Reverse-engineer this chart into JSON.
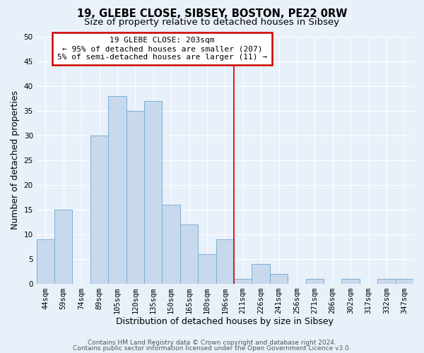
{
  "title1": "19, GLEBE CLOSE, SIBSEY, BOSTON, PE22 0RW",
  "title2": "Size of property relative to detached houses in Sibsey",
  "xlabel": "Distribution of detached houses by size in Sibsey",
  "ylabel": "Number of detached properties",
  "bar_labels": [
    "44sqm",
    "59sqm",
    "74sqm",
    "89sqm",
    "105sqm",
    "120sqm",
    "135sqm",
    "150sqm",
    "165sqm",
    "180sqm",
    "196sqm",
    "211sqm",
    "226sqm",
    "241sqm",
    "256sqm",
    "271sqm",
    "286sqm",
    "302sqm",
    "317sqm",
    "332sqm",
    "347sqm"
  ],
  "bar_values": [
    9,
    15,
    0,
    30,
    38,
    35,
    37,
    16,
    12,
    6,
    9,
    1,
    4,
    2,
    0,
    1,
    0,
    1,
    0,
    1,
    1
  ],
  "bar_color": "#c8d9ee",
  "bar_edge_color": "#7bafd4",
  "reference_line_x": 10.5,
  "annotation_title": "19 GLEBE CLOSE: 203sqm",
  "annotation_line1": "← 95% of detached houses are smaller (207)",
  "annotation_line2": "5% of semi-detached houses are larger (11) →",
  "annotation_box_color": "#ffffff",
  "annotation_box_edge": "#cc0000",
  "ref_line_color": "#cc0000",
  "ylim": [
    0,
    50
  ],
  "yticks": [
    0,
    5,
    10,
    15,
    20,
    25,
    30,
    35,
    40,
    45,
    50
  ],
  "footer1": "Contains HM Land Registry data © Crown copyright and database right 2024.",
  "footer2": "Contains public sector information licensed under the Open Government Licence v3.0.",
  "bg_color": "#e8f0fa",
  "plot_bg_color": "#e8f0fa",
  "grid_color": "#ffffff",
  "title_fontsize": 10.5,
  "subtitle_fontsize": 9.5,
  "axis_label_fontsize": 9,
  "tick_fontsize": 7.5,
  "footer_fontsize": 6.5
}
